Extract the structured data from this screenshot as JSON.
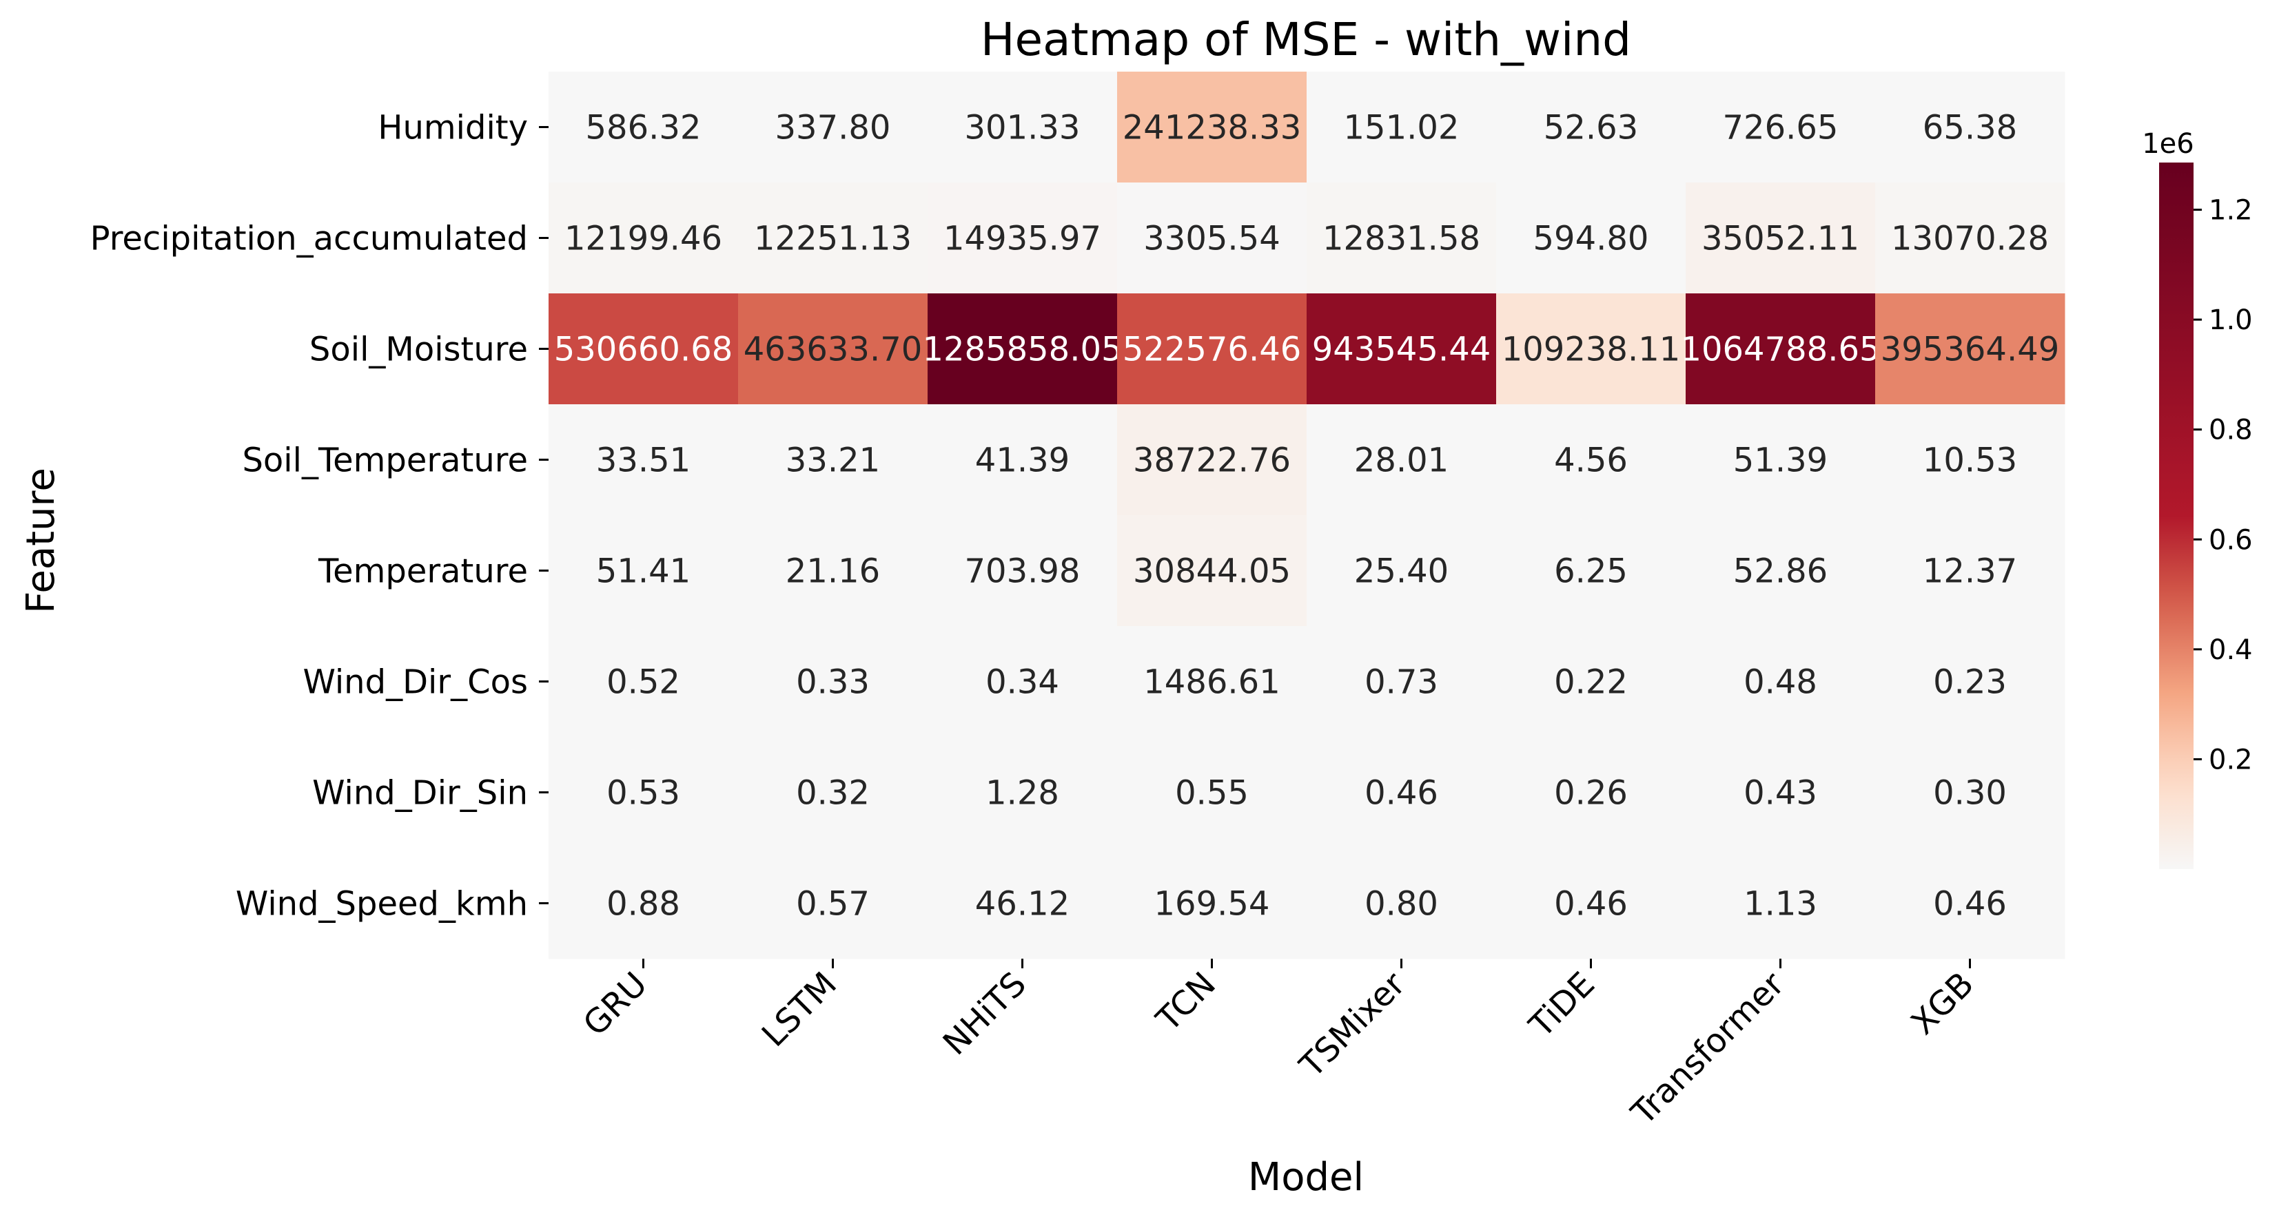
{
  "chart_data": {
    "type": "heatmap",
    "title": "Heatmap of MSE - with_wind",
    "xlabel": "Model",
    "ylabel": "Feature",
    "x_categories": [
      "GRU",
      "LSTM",
      "NHiTS",
      "TCN",
      "TSMixer",
      "TiDE",
      "Transformer",
      "XGB"
    ],
    "y_categories": [
      "Humidity",
      "Precipitation_accumulated",
      "Soil_Moisture",
      "Soil_Temperature",
      "Temperature",
      "Wind_Dir_Cos",
      "Wind_Dir_Sin",
      "Wind_Speed_kmh"
    ],
    "values": [
      [
        586.32,
        337.8,
        301.33,
        241238.33,
        151.02,
        52.63,
        726.65,
        65.38
      ],
      [
        12199.46,
        12251.13,
        14935.97,
        3305.54,
        12831.58,
        594.8,
        35052.11,
        13070.28
      ],
      [
        530660.68,
        463633.7,
        1285858.05,
        522576.46,
        943545.44,
        109238.11,
        1064788.65,
        395364.49
      ],
      [
        33.51,
        33.21,
        41.39,
        38722.76,
        28.01,
        4.56,
        51.39,
        10.53
      ],
      [
        51.41,
        21.16,
        703.98,
        30844.05,
        25.4,
        6.25,
        52.86,
        12.37
      ],
      [
        0.52,
        0.33,
        0.34,
        1486.61,
        0.73,
        0.22,
        0.48,
        0.23
      ],
      [
        0.53,
        0.32,
        1.28,
        0.55,
        0.46,
        0.26,
        0.43,
        0.3
      ],
      [
        0.88,
        0.57,
        46.12,
        169.54,
        0.8,
        0.46,
        1.13,
        0.46
      ]
    ],
    "value_format": "2 decimals",
    "colormap": "RdBu_r (upper half)",
    "color_range": [
      0,
      1285858.05
    ],
    "colorbar": {
      "offset_label": "1e6",
      "ticks": [
        0.2,
        0.4,
        0.6,
        0.8,
        1.0,
        1.2
      ],
      "tick_labels": [
        "0.2",
        "0.4",
        "0.6",
        "0.8",
        "1.0",
        "1.2"
      ],
      "tick_scale": 1000000
    },
    "grid": false
  }
}
